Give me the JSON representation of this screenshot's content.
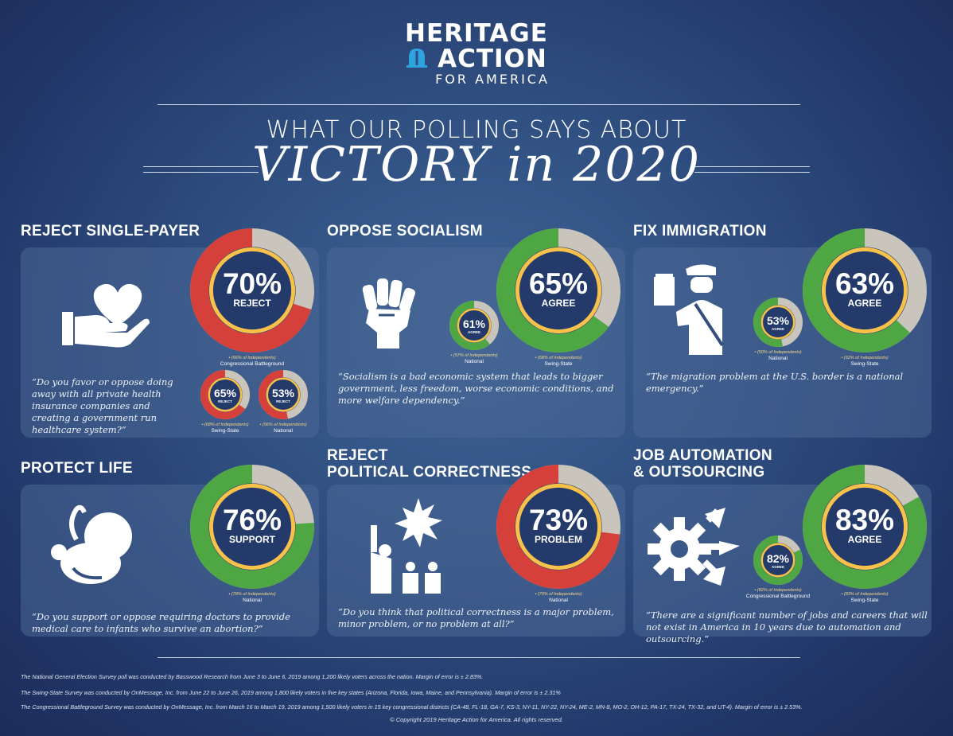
{
  "logo": {
    "line1": "HERITAGE",
    "line2": "ACTION",
    "line3": "FOR AMERICA"
  },
  "subtitle": "WHAT OUR POLLING SAYS ABOUT",
  "title": "VICTORY in 2020",
  "colors": {
    "green": "#4fa744",
    "red": "#d5403a",
    "gray": "#c9c5bc",
    "yellow": "#f7c14a",
    "navy": "#233a6a"
  },
  "chart_data": [
    {
      "type": "pie",
      "section": "REJECT SINGLE-PAYER",
      "label": "REJECT",
      "value": 70,
      "color": "red",
      "independents": "(66% of Independents)",
      "group": "Congressional Battleground"
    },
    {
      "type": "pie",
      "section": "REJECT SINGLE-PAYER",
      "label": "REJECT",
      "value": 65,
      "color": "red",
      "independents": "(68% of Independents)",
      "group": "Swing-State"
    },
    {
      "type": "pie",
      "section": "REJECT SINGLE-PAYER",
      "label": "REJECT",
      "value": 53,
      "color": "red",
      "independents": "(56% of Independents)",
      "group": "National"
    },
    {
      "type": "pie",
      "section": "OPPOSE SOCIALISM",
      "label": "AGREE",
      "value": 65,
      "color": "green",
      "independents": "(68% of Independents)",
      "group": "Swing-State"
    },
    {
      "type": "pie",
      "section": "OPPOSE SOCIALISM",
      "label": "AGREE",
      "value": 61,
      "color": "green",
      "independents": "(57% of Independents)",
      "group": "National"
    },
    {
      "type": "pie",
      "section": "FIX IMMIGRATION",
      "label": "AGREE",
      "value": 63,
      "color": "green",
      "independents": "(62% of Independents)",
      "group": "Swing-State"
    },
    {
      "type": "pie",
      "section": "FIX IMMIGRATION",
      "label": "AGREE",
      "value": 53,
      "color": "green",
      "independents": "(50% of Independents)",
      "group": "National"
    },
    {
      "type": "pie",
      "section": "PROTECT LIFE",
      "label": "SUPPORT",
      "value": 76,
      "color": "green",
      "independents": "(78% of Independents)",
      "group": "National"
    },
    {
      "type": "pie",
      "section": "REJECT POLITICAL CORRECTNESS",
      "label": "PROBLEM",
      "value": 73,
      "color": "red",
      "independents": "(70% of Independents)",
      "group": "National"
    },
    {
      "type": "pie",
      "section": "JOB AUTOMATION & OUTSOURCING",
      "label": "AGREE",
      "value": 83,
      "color": "green",
      "independents": "(83% of Independents)",
      "group": "Swing-State"
    },
    {
      "type": "pie",
      "section": "JOB AUTOMATION & OUTSOURCING",
      "label": "AGREE",
      "value": 82,
      "color": "green",
      "independents": "(82% of Independents)",
      "group": "Congressional Battleground"
    }
  ],
  "sections": {
    "s1": {
      "head": "REJECT SINGLE-PAYER",
      "quote": "“Do you favor or oppose doing away with all private health insurance companies and creating a government run healthcare system?”"
    },
    "s2": {
      "head": "OPPOSE SOCIALISM",
      "quote": "“Socialism is a bad economic system that leads to bigger government, less freedom, worse economic conditions, and more welfare dependency.”"
    },
    "s3": {
      "head": "FIX IMMIGRATION",
      "quote": "“The migration problem at the U.S. border is a national emergency.”"
    },
    "s4": {
      "head": "PROTECT LIFE",
      "quote": "“Do you support or oppose requiring doctors to provide medical care to infants who survive an abortion?”"
    },
    "s5": {
      "head1": "REJECT",
      "head2": "POLITICAL CORRECTNESS",
      "quote": "“Do you think that political correctness is a major problem, minor problem, or no problem at all?”"
    },
    "s6": {
      "head1": "JOB AUTOMATION",
      "head2": "& OUTSOURCING",
      "quote": "“There are a significant number of jobs and careers that will not exist in America in 10 years due to automation and outsourcing.”"
    }
  },
  "footnotes": [
    "The National General Election Survey poll was conducted by Basswood Research from June 3 to June 6, 2019 among 1,200 likely voters across the nation. Margin of error is ± 2.83%.",
    "The Swing-State Survey was conducted by OnMessage, Inc. from June 22 to June 26, 2019 among 1,800 likely voters in five key states (Arizona, Florida, Iowa, Maine, and Pennsylvania). Margin of error is ± 2.31%",
    "The Congressional Battleground Survey was conducted by OnMessage, Inc. from March 16 to March 19, 2019 among 1,500 likely voters in 15 key congressional districts (CA-48, FL-18, GA-7, KS-3, NY-11, NY-22, NY-24, ME-2, MN-8, MO-2, OH-12, PA-17, TX-24, TX-32, and UT-4). Margin of error is ± 2.53%."
  ],
  "copyright": "© Copyright 2019 Heritage Action for America.  All rights reserved."
}
